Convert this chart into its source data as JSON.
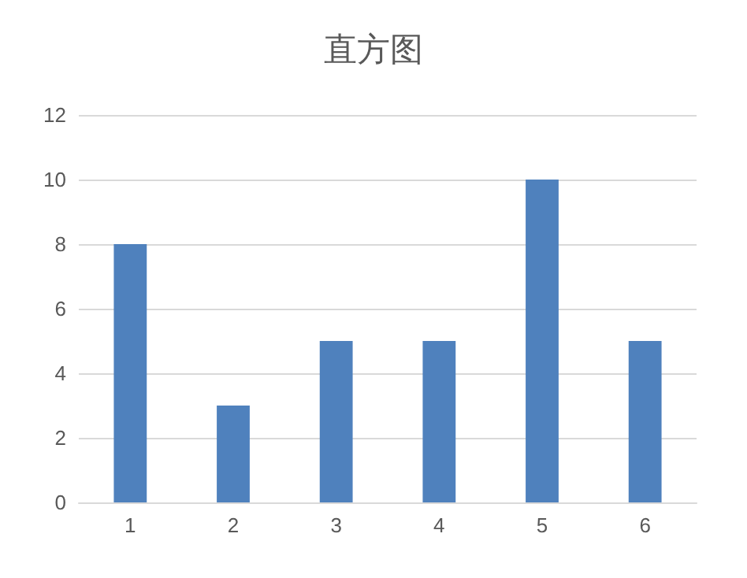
{
  "chart_data": {
    "type": "bar",
    "title": "直方图",
    "categories": [
      "1",
      "2",
      "3",
      "4",
      "5",
      "6"
    ],
    "values": [
      8,
      3,
      5,
      5,
      10,
      5
    ],
    "color": "#4f81bd",
    "ylim": [
      0,
      12
    ],
    "yticks": [
      0,
      2,
      4,
      6,
      8,
      10,
      12
    ],
    "grid": "y"
  }
}
